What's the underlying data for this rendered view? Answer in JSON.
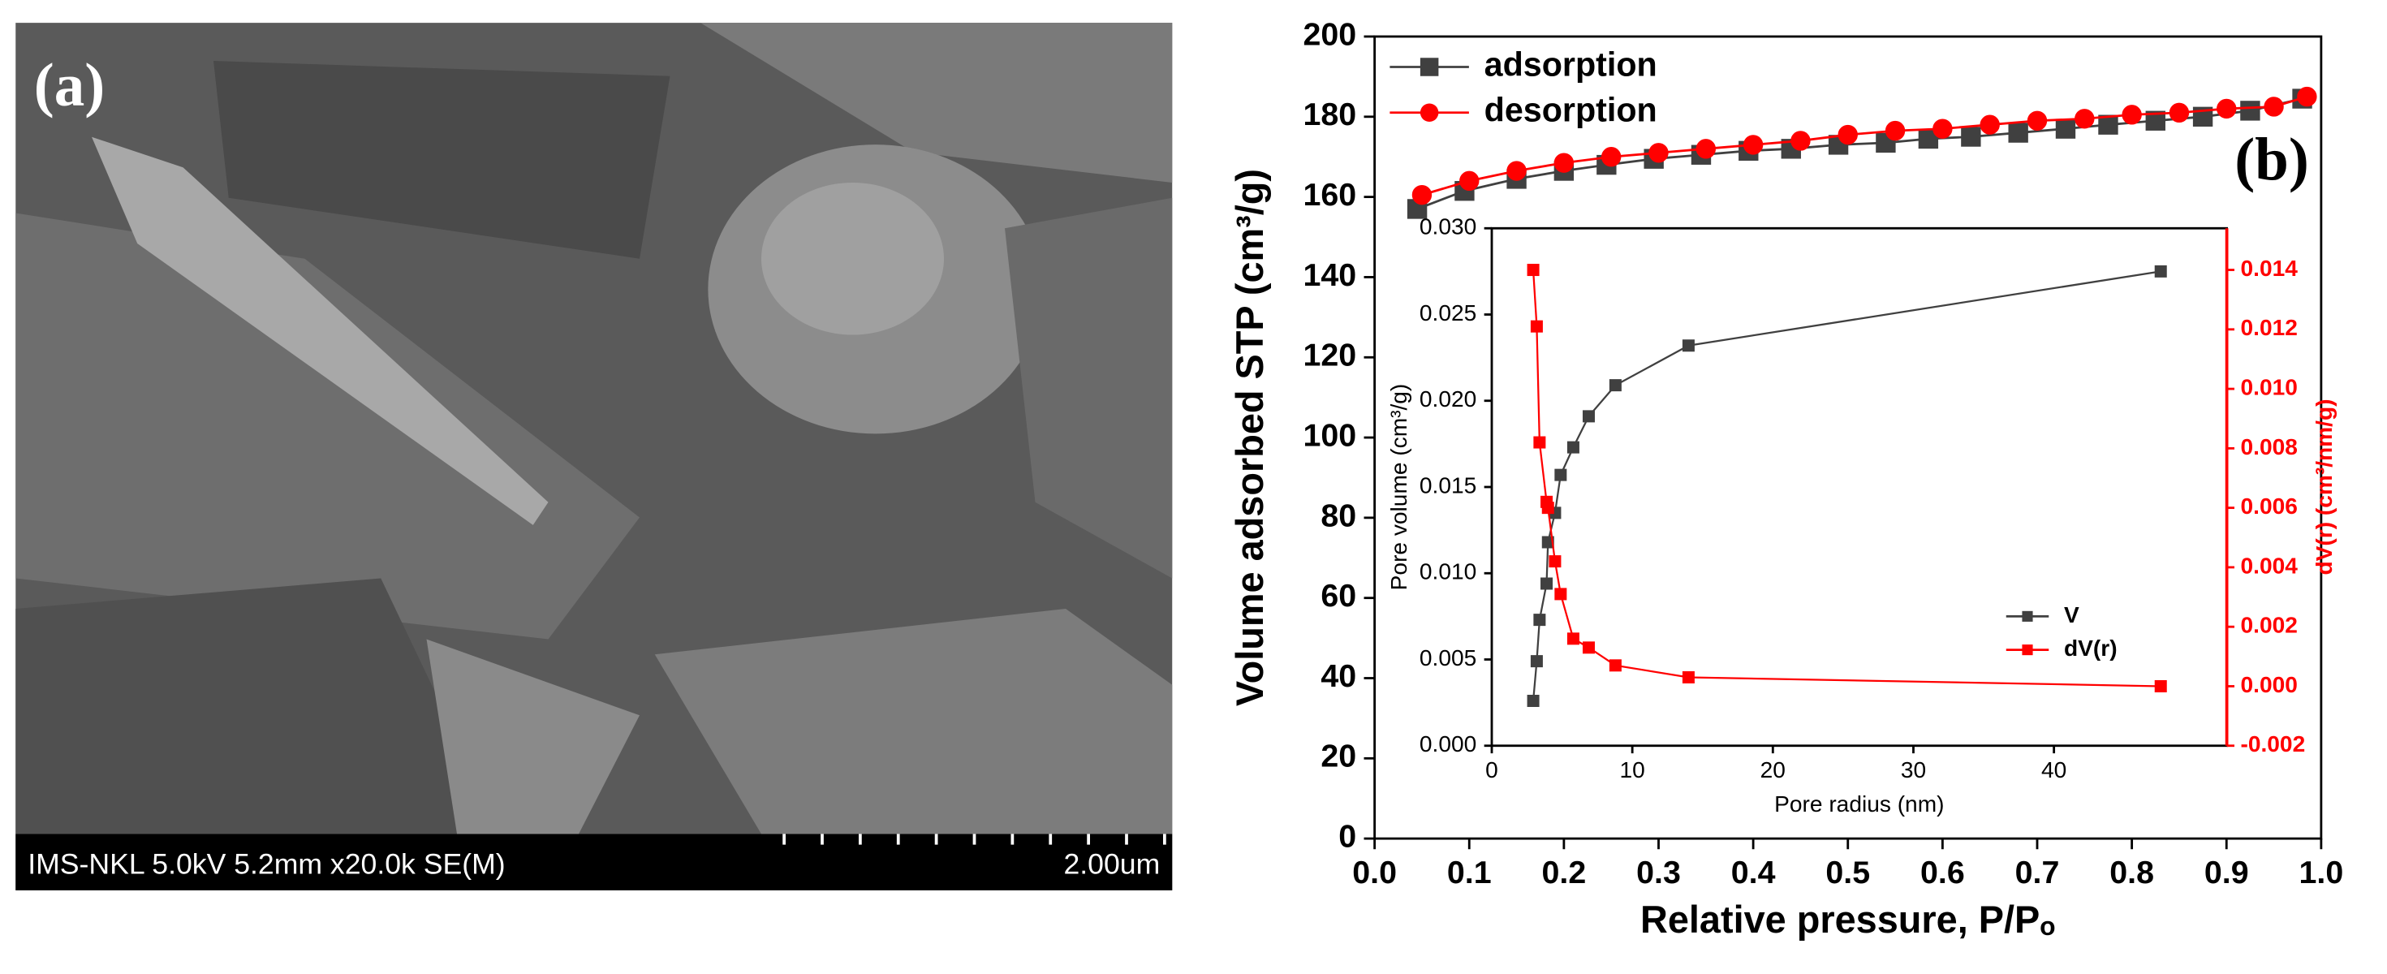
{
  "image_panel": {
    "label": "(a)",
    "caption": "IMS-NKL 5.0kV 5.2mm x20.0k SE(M)",
    "scale_bar": "2.00um"
  },
  "chart_data": [
    {
      "type": "line",
      "label": "(b)",
      "x_label": "Relative pressure, P/Pₒ",
      "y_label": "Volume adsorbed STP (cm³/g)",
      "xlim": [
        0,
        1.0
      ],
      "ylim": [
        0,
        200
      ],
      "xticks": [
        {
          "value": 0,
          "label": "0.0"
        },
        0.1,
        0.2,
        0.3,
        0.4,
        0.5,
        0.6,
        0.7,
        0.8,
        0.9,
        {
          "value": 1,
          "label": "1.0"
        }
      ],
      "yticks": [
        0,
        20,
        40,
        60,
        80,
        100,
        120,
        140,
        160,
        180,
        200
      ],
      "legend": "upper left",
      "series": [
        {
          "name": "adsorption",
          "color": "#404040",
          "marker": "square",
          "x": [
            0.045,
            0.095,
            0.15,
            0.2,
            0.245,
            0.295,
            0.345,
            0.395,
            0.44,
            0.49,
            0.54,
            0.585,
            0.63,
            0.68,
            0.73,
            0.775,
            0.825,
            0.875,
            0.925,
            0.98
          ],
          "values": [
            157,
            161.5,
            164.5,
            166.5,
            168,
            169.5,
            170.5,
            171.5,
            172,
            173,
            173.5,
            174.5,
            175,
            176,
            177,
            178,
            179,
            180,
            181.5,
            184.5
          ]
        },
        {
          "name": "desorption",
          "color": "#ff0000",
          "marker": "circle",
          "x": [
            0.05,
            0.1,
            0.15,
            0.2,
            0.25,
            0.3,
            0.35,
            0.4,
            0.45,
            0.5,
            0.55,
            0.6,
            0.65,
            0.7,
            0.75,
            0.8,
            0.85,
            0.9,
            0.95,
            0.985
          ],
          "values": [
            160.5,
            164,
            166.5,
            168.5,
            170,
            171,
            172,
            173,
            174,
            175.5,
            176.5,
            177,
            178,
            179,
            179.5,
            180.5,
            181,
            182,
            182.5,
            185
          ]
        }
      ]
    },
    {
      "type": "line",
      "x_label": "Pore radius (nm)",
      "y_label": "Pore volume (cm³/g)",
      "y2_label": "dV(r) (cm³/nm/g)",
      "xlim": [
        0,
        52.3
      ],
      "ylim": [
        0,
        0.03
      ],
      "y2lim": [
        -0.002,
        0.0154
      ],
      "xticks": [
        0,
        10,
        20,
        30,
        40
      ],
      "yticks": [
        {
          "value": 0,
          "label": "0.000"
        },
        {
          "value": 0.005,
          "label": "0.005"
        },
        {
          "value": 0.01,
          "label": "0.010"
        },
        {
          "value": 0.015,
          "label": "0.015"
        },
        {
          "value": 0.02,
          "label": "0.020"
        },
        {
          "value": 0.025,
          "label": "0.025"
        },
        {
          "value": 0.03,
          "label": "0.030"
        }
      ],
      "y2ticks": [
        {
          "value": -0.002,
          "label": "-0.002"
        },
        {
          "value": 0,
          "label": "0.000"
        },
        0.002,
        0.004,
        0.006,
        0.008,
        {
          "value": 0.01,
          "label": "0.010"
        },
        0.012,
        0.014
      ],
      "legend": "lower right",
      "series": [
        {
          "name": "V",
          "color": "#404040",
          "marker": "square",
          "x": [
            2.95,
            3.2,
            3.4,
            3.9,
            4.0,
            4.5,
            4.9,
            5.8,
            6.9,
            8.8,
            14.0,
            47.6
          ],
          "values": [
            0.0026,
            0.0049,
            0.0073,
            0.0094,
            0.0118,
            0.0135,
            0.0157,
            0.0173,
            0.0191,
            0.0209,
            0.0232,
            0.0275
          ]
        },
        {
          "name": "dV(r)",
          "color": "#ff0000",
          "marker": "square",
          "axis": "y2",
          "x": [
            2.95,
            3.2,
            3.4,
            3.9,
            4.0,
            4.5,
            4.9,
            5.8,
            6.9,
            8.8,
            14.0,
            47.6
          ],
          "values": [
            0.014,
            0.0121,
            0.0082,
            0.0062,
            0.006,
            0.0042,
            0.0031,
            0.0016,
            0.0013,
            0.0007,
            0.0003,
            0
          ]
        }
      ]
    }
  ]
}
